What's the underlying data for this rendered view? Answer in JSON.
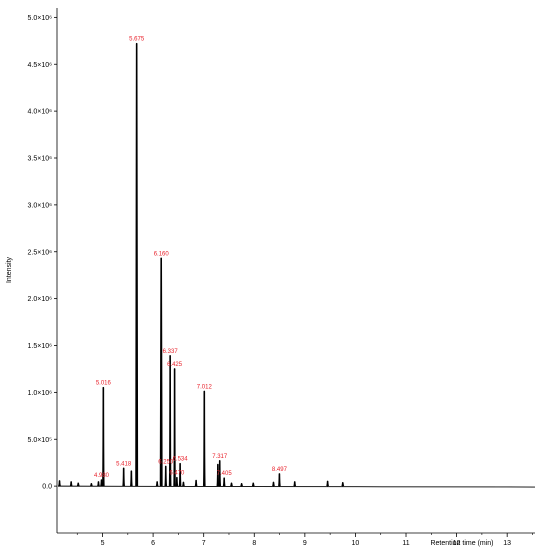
{
  "chart_data": {
    "type": "line",
    "title": "",
    "xlabel": "Retention time (min)",
    "ylabel": "Intensity",
    "xlim": [
      4.1,
      13.55
    ],
    "ylim": [
      -500000,
      5100000
    ],
    "grid": false,
    "x_ticks": [
      {
        "value": 5,
        "label": "5"
      },
      {
        "value": 6,
        "label": "6"
      },
      {
        "value": 7,
        "label": "7"
      },
      {
        "value": 8,
        "label": "8"
      },
      {
        "value": 9,
        "label": "9"
      },
      {
        "value": 10,
        "label": "10"
      },
      {
        "value": 11,
        "label": "11"
      },
      {
        "value": 12,
        "label": "12"
      },
      {
        "value": 13,
        "label": "13"
      }
    ],
    "y_ticks": [
      {
        "value": 0,
        "label": "0.0"
      },
      {
        "value": 500000,
        "label": "5.0×10⁵"
      },
      {
        "value": 1000000,
        "label": "1.0×10⁶"
      },
      {
        "value": 1500000,
        "label": "1.5×10⁶"
      },
      {
        "value": 2000000,
        "label": "2.0×10⁶"
      },
      {
        "value": 2500000,
        "label": "2.5×10⁶"
      },
      {
        "value": 3000000,
        "label": "3.0×10⁶"
      },
      {
        "value": 3500000,
        "label": "3.5×10⁶"
      },
      {
        "value": 4000000,
        "label": "4.0×10⁶"
      },
      {
        "value": 4500000,
        "label": "4.5×10⁶"
      },
      {
        "value": 5000000,
        "label": "5.0×10⁶"
      }
    ],
    "peaks": [
      {
        "rt": 4.15,
        "height": 55000
      },
      {
        "rt": 4.38,
        "height": 45000
      },
      {
        "rt": 4.52,
        "height": 30000
      },
      {
        "rt": 4.78,
        "height": 25000
      },
      {
        "rt": 4.92,
        "height": 45000
      },
      {
        "rt": 4.98,
        "height": 65000,
        "label": "4.980"
      },
      {
        "rt": 5.016,
        "height": 1050000,
        "label": "5.016"
      },
      {
        "rt": 5.418,
        "height": 190000,
        "label": "5.418"
      },
      {
        "rt": 5.57,
        "height": 160000
      },
      {
        "rt": 5.675,
        "height": 4720000,
        "label": "5.675"
      },
      {
        "rt": 6.08,
        "height": 45000
      },
      {
        "rt": 6.16,
        "height": 2430000,
        "label": "6.160"
      },
      {
        "rt": 6.25,
        "height": 210000,
        "label": "6.250"
      },
      {
        "rt": 6.337,
        "height": 1390000,
        "label": "6.337"
      },
      {
        "rt": 6.425,
        "height": 1250000,
        "label": "6.425"
      },
      {
        "rt": 6.47,
        "height": 90000,
        "label": "6.470"
      },
      {
        "rt": 6.534,
        "height": 240000,
        "label": "6.534"
      },
      {
        "rt": 6.6,
        "height": 40000
      },
      {
        "rt": 6.85,
        "height": 60000
      },
      {
        "rt": 7.012,
        "height": 1010000,
        "label": "7.012"
      },
      {
        "rt": 7.28,
        "height": 230000
      },
      {
        "rt": 7.317,
        "height": 270000,
        "label": "7.317"
      },
      {
        "rt": 7.405,
        "height": 85000,
        "label": "7.405"
      },
      {
        "rt": 7.55,
        "height": 30000
      },
      {
        "rt": 7.75,
        "height": 25000
      },
      {
        "rt": 7.98,
        "height": 30000
      },
      {
        "rt": 8.38,
        "height": 40000
      },
      {
        "rt": 8.497,
        "height": 130000,
        "label": "8.497"
      },
      {
        "rt": 8.8,
        "height": 45000
      },
      {
        "rt": 9.45,
        "height": 50000
      },
      {
        "rt": 9.75,
        "height": 35000
      }
    ]
  },
  "colors": {
    "trace": "#000000",
    "peak_label": "#e8202a",
    "axis": "#000000"
  }
}
